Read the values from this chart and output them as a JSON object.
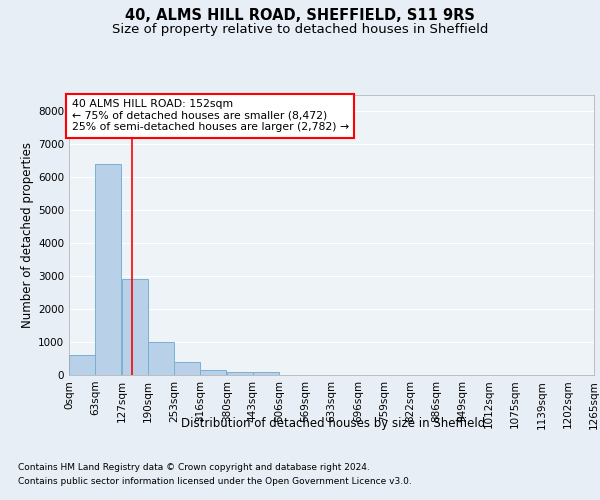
{
  "title1": "40, ALMS HILL ROAD, SHEFFIELD, S11 9RS",
  "title2": "Size of property relative to detached houses in Sheffield",
  "xlabel": "Distribution of detached houses by size in Sheffield",
  "ylabel": "Number of detached properties",
  "bar_values": [
    600,
    6400,
    2900,
    1000,
    380,
    150,
    90,
    80,
    0,
    0,
    0,
    0,
    0,
    0,
    0,
    0,
    0,
    0,
    0,
    0
  ],
  "bin_edges": [
    0,
    63,
    127,
    190,
    253,
    316,
    380,
    443,
    506,
    569,
    633,
    696,
    759,
    822,
    886,
    949,
    1012,
    1075,
    1139,
    1202,
    1265
  ],
  "x_labels": [
    "0sqm",
    "63sqm",
    "127sqm",
    "190sqm",
    "253sqm",
    "316sqm",
    "380sqm",
    "443sqm",
    "506sqm",
    "569sqm",
    "633sqm",
    "696sqm",
    "759sqm",
    "822sqm",
    "886sqm",
    "949sqm",
    "1012sqm",
    "1075sqm",
    "1139sqm",
    "1202sqm",
    "1265sqm"
  ],
  "bar_color": "#b8d0e8",
  "bar_edge_color": "#7aafd4",
  "vline_x": 152,
  "vline_color": "red",
  "ylim": [
    0,
    8500
  ],
  "yticks": [
    0,
    1000,
    2000,
    3000,
    4000,
    5000,
    6000,
    7000,
    8000
  ],
  "annotation_text": "40 ALMS HILL ROAD: 152sqm\n← 75% of detached houses are smaller (8,472)\n25% of semi-detached houses are larger (2,782) →",
  "annotation_box_color": "white",
  "annotation_box_edge_color": "red",
  "background_color": "#e8eef5",
  "plot_area_color": "#eef3f8",
  "footer1": "Contains HM Land Registry data © Crown copyright and database right 2024.",
  "footer2": "Contains public sector information licensed under the Open Government Licence v3.0.",
  "grid_color": "#ffffff",
  "title1_fontsize": 10.5,
  "title2_fontsize": 9.5,
  "ylabel_fontsize": 8.5,
  "xlabel_fontsize": 8.5,
  "tick_fontsize": 7.5,
  "annot_fontsize": 7.8,
  "footer_fontsize": 6.5
}
